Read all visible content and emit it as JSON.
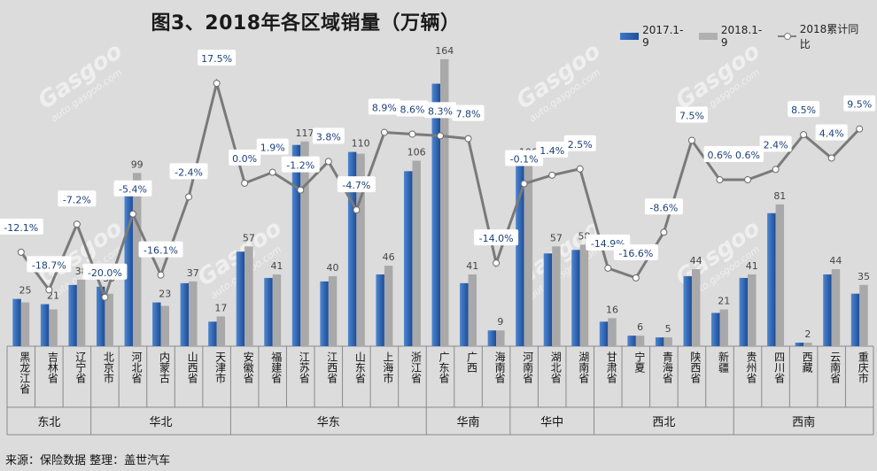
{
  "title": "图3、2018年各区域销量（万辆）",
  "legend": {
    "s2017": "2017.1-9",
    "s2018": "2018.1-9",
    "yoy": "2018累计同比"
  },
  "source": "来源：保险数据  整理：盖世汽车",
  "watermark": {
    "brand": "Gasgoo",
    "cn": "盖世汽车",
    "url": "auto.gasgoo.com"
  },
  "colors": {
    "s2017": "#2a5fae",
    "s2018": "#a9a9a9",
    "line": "#7a7a7a"
  },
  "chart_data": {
    "type": "bar",
    "title": "图3、2018年各区域销量（万辆）",
    "categories": [
      "黑龙江省",
      "吉林省",
      "辽宁省",
      "北京市",
      "河北省",
      "内蒙古",
      "山西省",
      "天津市",
      "安徽省",
      "福建省",
      "江苏省",
      "江西省",
      "山东省",
      "上海市",
      "浙江省",
      "广东省",
      "广西",
      "海南省",
      "河南省",
      "湖北省",
      "湖南省",
      "甘肃省",
      "宁夏",
      "青海省",
      "陕西省",
      "新疆",
      "贵州省",
      "四川省",
      "西藏",
      "云南省",
      "重庆市"
    ],
    "series": [
      {
        "name": "2017.1-9",
        "values": [
          27,
          24,
          35,
          34,
          92,
          25,
          36,
          14,
          54,
          39,
          115,
          37,
          111,
          41,
          100,
          150,
          36,
          9,
          103,
          53,
          55,
          14,
          6,
          5,
          40,
          19,
          39,
          76,
          2,
          41,
          30
        ]
      },
      {
        "name": "2018.1-9",
        "values": [
          25,
          21,
          38,
          30,
          99,
          23,
          37,
          17,
          57,
          41,
          117,
          40,
          110,
          46,
          106,
          164,
          41,
          9,
          106,
          57,
          58,
          16,
          6,
          5,
          44,
          21,
          41,
          81,
          2,
          44,
          35
        ]
      },
      {
        "name": "2018累计同比",
        "axis": "secondary",
        "unit": "%",
        "values": [
          -12.1,
          -18.7,
          -7.2,
          -20.0,
          -5.4,
          -16.1,
          -2.4,
          17.5,
          0.0,
          1.9,
          -1.2,
          3.8,
          -4.7,
          8.9,
          8.6,
          8.3,
          7.8,
          -14.0,
          -0.1,
          1.4,
          2.5,
          -14.9,
          -16.6,
          -8.6,
          7.5,
          0.6,
          0.6,
          2.4,
          8.5,
          4.4,
          9.5
        ]
      }
    ],
    "value_labels": [
      "25",
      "21",
      "38",
      "30",
      "99",
      "23",
      "37",
      "17",
      "57",
      "41",
      "117",
      "40",
      "110",
      "46",
      "106",
      "164",
      "41",
      "9",
      "106",
      "57",
      "58",
      "16",
      "6",
      "5",
      "44",
      "21",
      "41",
      "81",
      "2",
      "44",
      "35"
    ],
    "pct_labels": [
      "-12.1%",
      "-18.7%",
      "-7.2%",
      "-20.0%",
      "-5.4%",
      "-16.1%",
      "-2.4%",
      "17.5%",
      "0.0%",
      "1.9%",
      "-1.2%",
      "3.8%",
      "-4.7%",
      "8.9%",
      "8.6%",
      "8.3%",
      "7.8%",
      "-14.0%",
      "-0.1%",
      "1.4%",
      "2.5%",
      "-14.9%",
      "-16.6%",
      "-8.6%",
      "7.5%",
      "0.6%",
      "0.6%",
      "2.4%",
      "8.5%",
      "4.4%",
      "9.5%"
    ],
    "regions": [
      {
        "name": "东北",
        "count": 3
      },
      {
        "name": "华北",
        "count": 5
      },
      {
        "name": "华东",
        "count": 7
      },
      {
        "name": "华南",
        "count": 3
      },
      {
        "name": "华中",
        "count": 3
      },
      {
        "name": "西北",
        "count": 5
      },
      {
        "name": "西南",
        "count": 5
      }
    ],
    "ylim": [
      0,
      170
    ],
    "y2lim": [
      -25,
      20
    ],
    "grid": false,
    "legend_position": "top-right"
  }
}
